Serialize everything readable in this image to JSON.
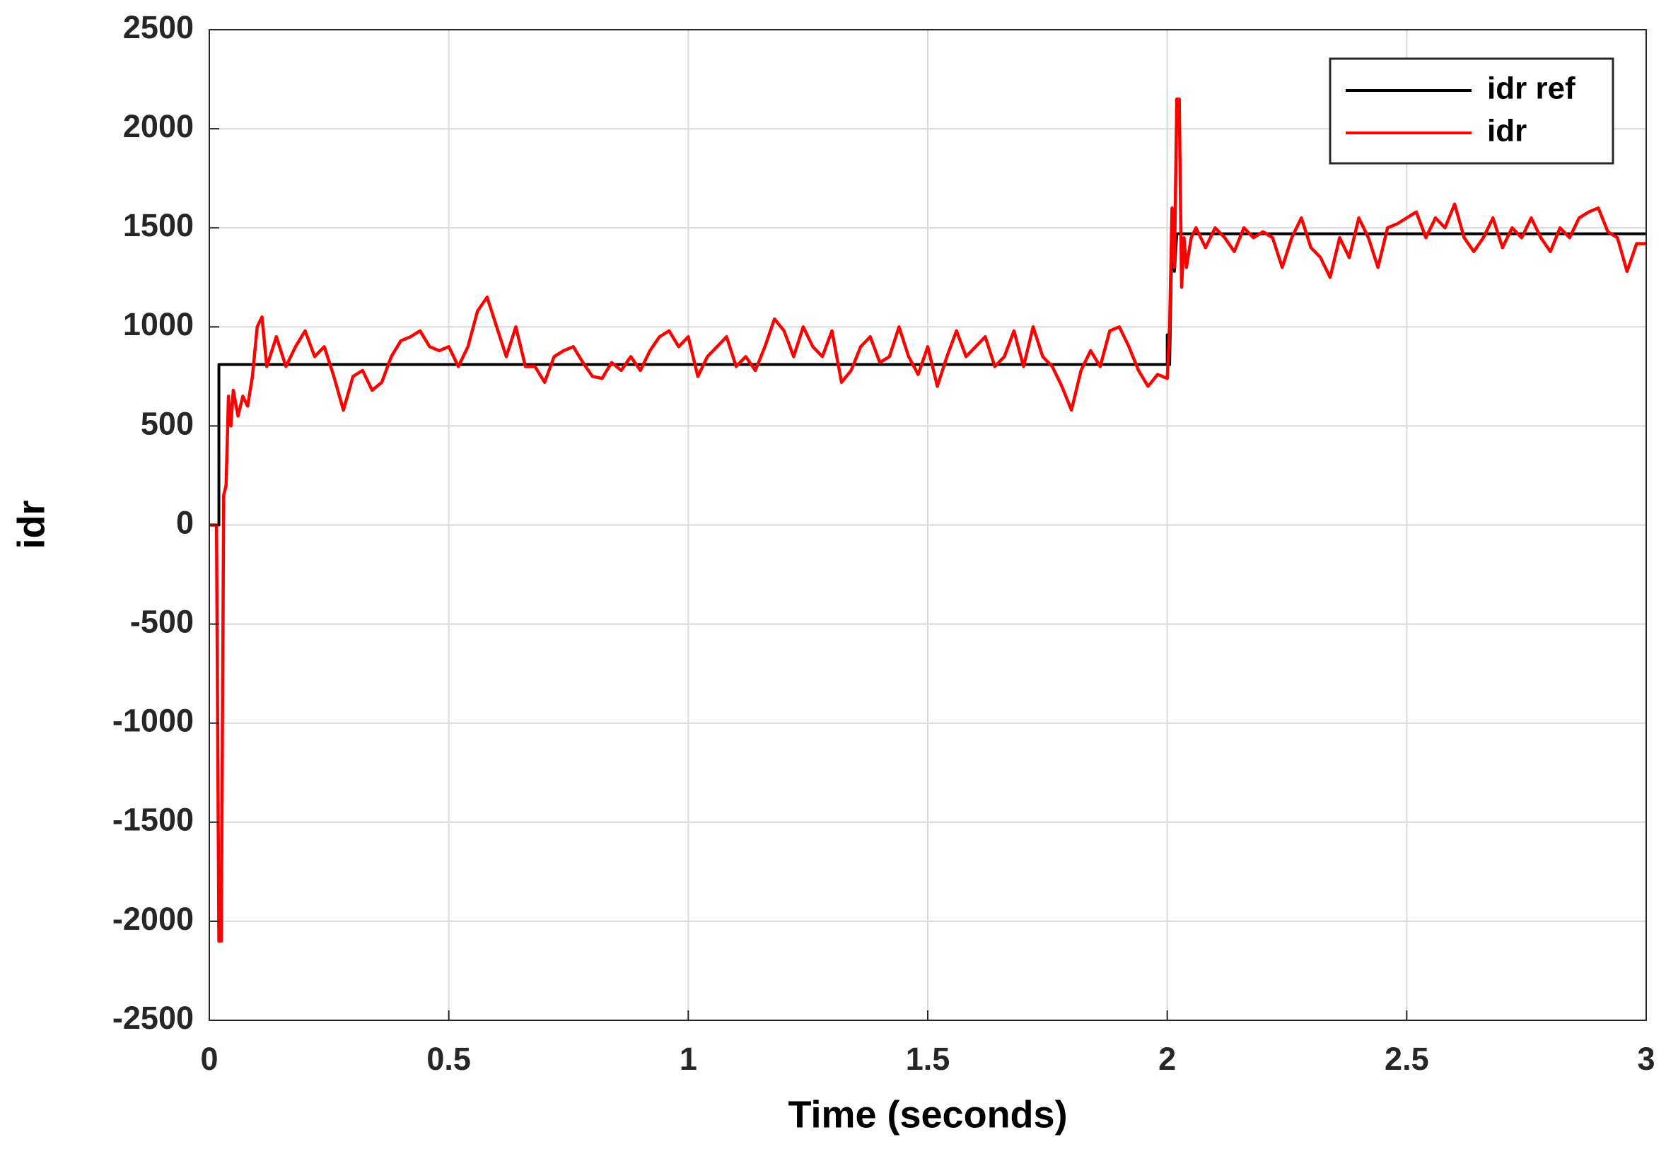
{
  "chart_data": {
    "type": "line",
    "xlabel": "Time (seconds)",
    "ylabel": "idr",
    "xlim": [
      0,
      3
    ],
    "xticks": [
      0,
      0.5,
      1,
      1.5,
      2,
      2.5,
      3
    ],
    "ylim": [
      -2500,
      2500
    ],
    "yticks": [
      -2500,
      -2000,
      -1500,
      -1000,
      -500,
      0,
      500,
      1000,
      1500,
      2000,
      2500
    ],
    "grid": true,
    "legend": "upper right",
    "series": [
      {
        "name": "idr ref",
        "color": "#000000",
        "x": [
          0,
          0.02,
          0.02,
          2.0,
          2.0,
          2.005,
          2.01,
          2.015,
          2.02,
          3.0
        ],
        "values": [
          0,
          0,
          810,
          810,
          960,
          810,
          1470,
          1280,
          1470,
          1470
        ]
      },
      {
        "name": "idr",
        "color": "#ff0000",
        "x": [
          0,
          0.015,
          0.02,
          0.025,
          0.03,
          0.035,
          0.04,
          0.045,
          0.05,
          0.06,
          0.07,
          0.08,
          0.09,
          0.1,
          0.11,
          0.12,
          0.14,
          0.16,
          0.18,
          0.2,
          0.22,
          0.24,
          0.26,
          0.28,
          0.3,
          0.32,
          0.34,
          0.36,
          0.38,
          0.4,
          0.42,
          0.44,
          0.46,
          0.48,
          0.5,
          0.52,
          0.54,
          0.56,
          0.58,
          0.6,
          0.62,
          0.64,
          0.66,
          0.68,
          0.7,
          0.72,
          0.74,
          0.76,
          0.78,
          0.8,
          0.82,
          0.84,
          0.86,
          0.88,
          0.9,
          0.92,
          0.94,
          0.96,
          0.98,
          1.0,
          1.02,
          1.04,
          1.06,
          1.08,
          1.1,
          1.12,
          1.14,
          1.16,
          1.18,
          1.2,
          1.22,
          1.24,
          1.26,
          1.28,
          1.3,
          1.32,
          1.34,
          1.36,
          1.38,
          1.4,
          1.42,
          1.44,
          1.46,
          1.48,
          1.5,
          1.52,
          1.54,
          1.56,
          1.58,
          1.6,
          1.62,
          1.64,
          1.66,
          1.68,
          1.7,
          1.72,
          1.74,
          1.76,
          1.78,
          1.8,
          1.82,
          1.84,
          1.86,
          1.88,
          1.9,
          1.92,
          1.94,
          1.96,
          1.98,
          2.0,
          2.005,
          2.01,
          2.015,
          2.02,
          2.025,
          2.03,
          2.035,
          2.04,
          2.05,
          2.06,
          2.08,
          2.1,
          2.12,
          2.14,
          2.16,
          2.18,
          2.2,
          2.22,
          2.24,
          2.26,
          2.28,
          2.3,
          2.32,
          2.34,
          2.36,
          2.38,
          2.4,
          2.42,
          2.44,
          2.46,
          2.48,
          2.5,
          2.52,
          2.54,
          2.56,
          2.58,
          2.6,
          2.62,
          2.64,
          2.66,
          2.68,
          2.7,
          2.72,
          2.74,
          2.76,
          2.78,
          2.8,
          2.82,
          2.84,
          2.86,
          2.88,
          2.9,
          2.92,
          2.94,
          2.96,
          2.98,
          3.0
        ],
        "values": [
          0,
          0,
          -2100,
          -2100,
          150,
          200,
          650,
          500,
          680,
          550,
          650,
          600,
          750,
          1000,
          1050,
          800,
          950,
          800,
          900,
          980,
          850,
          900,
          750,
          580,
          750,
          780,
          680,
          720,
          850,
          930,
          950,
          980,
          900,
          880,
          900,
          800,
          900,
          1080,
          1150,
          1000,
          850,
          1000,
          800,
          800,
          720,
          850,
          880,
          900,
          820,
          750,
          740,
          820,
          780,
          850,
          780,
          880,
          950,
          980,
          900,
          950,
          750,
          850,
          900,
          950,
          800,
          850,
          780,
          900,
          1040,
          980,
          850,
          1000,
          900,
          850,
          980,
          720,
          780,
          900,
          950,
          820,
          850,
          1000,
          850,
          760,
          900,
          700,
          850,
          980,
          850,
          900,
          950,
          800,
          850,
          980,
          800,
          1000,
          850,
          800,
          700,
          580,
          780,
          880,
          800,
          980,
          1000,
          900,
          780,
          700,
          760,
          740,
          1000,
          1600,
          1300,
          2150,
          2150,
          1200,
          1450,
          1300,
          1450,
          1500,
          1400,
          1500,
          1450,
          1380,
          1500,
          1450,
          1480,
          1450,
          1300,
          1450,
          1550,
          1400,
          1350,
          1250,
          1450,
          1350,
          1550,
          1450,
          1300,
          1500,
          1520,
          1550,
          1580,
          1450,
          1550,
          1500,
          1620,
          1450,
          1380,
          1450,
          1550,
          1400,
          1500,
          1450,
          1550,
          1450,
          1380,
          1500,
          1450,
          1550,
          1580,
          1600,
          1480,
          1450,
          1280,
          1420,
          1420
        ]
      }
    ]
  }
}
